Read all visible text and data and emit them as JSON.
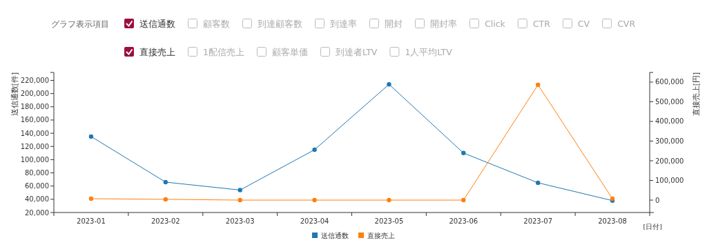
{
  "chart_data": {
    "type": "line",
    "xlabel": "[日付]",
    "ylabel": "送信通数[件]",
    "y2label": "直接売上[円]",
    "categories": [
      "2023-01",
      "2023-02",
      "2023-03",
      "2023-04",
      "2023-05",
      "2023-06",
      "2023-07",
      "2023-08"
    ],
    "series": [
      {
        "name": "送信通数",
        "color": "#1f77b4",
        "values": [
          135000,
          66000,
          54000,
          115000,
          214000,
          110000,
          65000,
          38000
        ]
      },
      {
        "name": "直接売上",
        "color": "#ff7f0e",
        "axis": "y2",
        "values": [
          7000,
          4000,
          0,
          0,
          0,
          0,
          586000,
          7000
        ]
      }
    ],
    "ylim": [
      20000,
      232000
    ],
    "yticks": [
      {
        "value": 20000,
        "label": "20,000"
      },
      {
        "value": 40000,
        "label": "40,000"
      },
      {
        "value": 60000,
        "label": "60,000"
      },
      {
        "value": 80000,
        "label": "80,000"
      },
      {
        "value": 100000,
        "label": "100,000"
      },
      {
        "value": 120000,
        "label": "120,000"
      },
      {
        "value": 140000,
        "label": "140,000"
      },
      {
        "value": 160000,
        "label": "160,000"
      },
      {
        "value": 180000,
        "label": "180,000"
      },
      {
        "value": 200000,
        "label": "200,000"
      },
      {
        "value": 220000,
        "label": "220,000"
      }
    ],
    "y2lim": [
      -63000,
      649000
    ],
    "y2ticks": [
      0,
      {
        "value": 100000,
        "label": "100,000"
      },
      {
        "value": 200000,
        "label": "200,000"
      },
      {
        "value": 300000,
        "label": "300,000"
      },
      {
        "value": 400000,
        "label": "400,000"
      },
      {
        "value": 500000,
        "label": "500,000"
      },
      {
        "value": 600000,
        "label": "600,000"
      }
    ],
    "marker": "circle",
    "line_style": "solid",
    "grid": false,
    "legend": "bottom",
    "annotations": [
      "グラフ表示項目",
      "顧客数",
      "到達顧客数",
      "到達率",
      "開封",
      "開封率",
      "Click",
      "CTR",
      "CV",
      "CVR",
      "1配信売上",
      "顧客単価",
      "到達者LTV",
      "1人平均LTV"
    ]
  }
}
